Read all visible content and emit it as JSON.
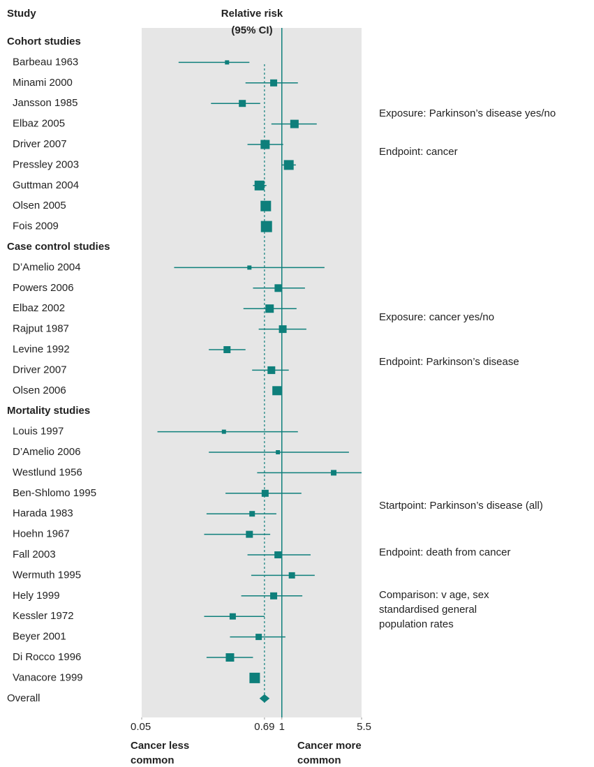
{
  "chart_data": {
    "type": "forest",
    "column_header": "Study",
    "axis_title": [
      "Relative risk",
      "(95% CI)"
    ],
    "xlim": [
      0.05,
      5.5
    ],
    "xticks": [
      0.05,
      0.69,
      1,
      5.5
    ],
    "log_scale": true,
    "reference_line": 1,
    "color": "#0e7f7b",
    "groups": [
      {
        "name": "Cohort studies",
        "studies": [
          "Barbeau 1963",
          "Minami 2000",
          "Jansson 1985",
          "Elbaz 2005",
          "Driver 2007",
          "Pressley 2003",
          "Guttman 2004",
          "Olsen 2005",
          "Fois 2009"
        ],
        "values": [
          0.31,
          0.84,
          0.43,
          1.31,
          0.7,
          1.16,
          0.62,
          0.71,
          0.72
        ],
        "lower": [
          0.11,
          0.46,
          0.22,
          0.8,
          0.48,
          1.0,
          0.54,
          0.65,
          0.66
        ],
        "upper": [
          0.5,
          1.41,
          0.63,
          2.11,
          1.03,
          1.35,
          0.72,
          0.79,
          0.8
        ],
        "weights": [
          3,
          5,
          5,
          6,
          6.5,
          7,
          7,
          7.5,
          8
        ]
      },
      {
        "name": "Case control studies",
        "studies": [
          "D’Amelio 2004",
          "Powers 2006",
          "Elbaz 2002",
          "Rajput 1987",
          "Levine 1992",
          "Driver 2007",
          "Olsen 2006"
        ],
        "values": [
          0.5,
          0.93,
          0.77,
          1.02,
          0.31,
          0.8,
          0.9
        ],
        "lower": [
          0.1,
          0.54,
          0.44,
          0.61,
          0.21,
          0.53,
          0.84
        ],
        "upper": [
          2.49,
          1.64,
          1.37,
          1.69,
          0.46,
          1.16,
          1.0
        ],
        "weights": [
          3,
          5.5,
          6,
          5.5,
          5,
          5.5,
          6.5
        ]
      },
      {
        "name": "Mortality studies",
        "studies": [
          "Louis 1997",
          "D’Amelio 2006",
          "Westlund 1956",
          "Ben-Shlomo 1995",
          "Harada 1983",
          "Hoehn 1967",
          "Fall 2003",
          "Wermuth 1995",
          "Hely 1999",
          "Kessler 1972",
          "Beyer 2001",
          "Di Rocco 1996",
          "Vanacore 1999"
        ],
        "values": [
          0.29,
          0.92,
          3.03,
          0.7,
          0.53,
          0.5,
          0.92,
          1.24,
          0.84,
          0.35,
          0.61,
          0.33,
          0.56
        ],
        "lower": [
          0.07,
          0.21,
          0.59,
          0.3,
          0.2,
          0.19,
          0.48,
          0.52,
          0.42,
          0.19,
          0.33,
          0.2,
          0.53
        ],
        "upper": [
          1.41,
          4.2,
          5.5,
          1.52,
          0.89,
          0.78,
          1.85,
          2.02,
          1.55,
          0.69,
          1.08,
          0.54,
          0.6
        ],
        "weights": [
          3,
          3,
          4,
          5,
          4,
          5,
          5,
          4.5,
          5,
          4.5,
          4.5,
          6,
          7.5
        ]
      }
    ],
    "overall": {
      "label": "Overall",
      "value": 0.69,
      "lower": 0.62,
      "upper": 0.77
    },
    "x_end_labels": [
      [
        "Cancer less",
        "common"
      ],
      [
        "Cancer more",
        "common"
      ]
    ],
    "annotations": [
      "Exposure: Parkinson’s disease yes/no",
      "Endpoint: cancer",
      "Exposure: cancer yes/no",
      "Endpoint: Parkinson’s disease",
      "Startpoint: Parkinson’s disease (all)",
      "Endpoint: death from cancer",
      "Comparison: v age, sex",
      "standardised general",
      "population rates"
    ]
  }
}
